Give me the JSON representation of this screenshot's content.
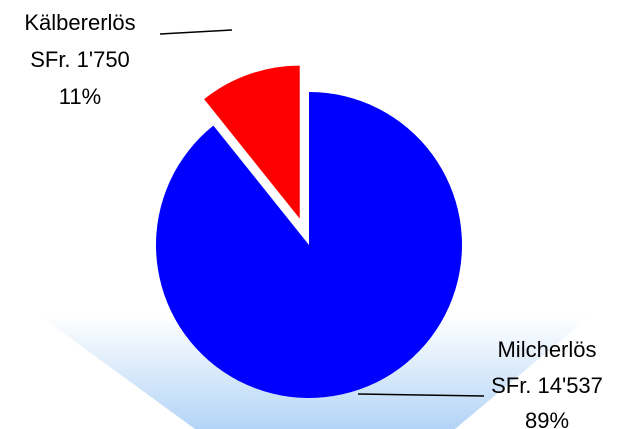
{
  "chart_data": {
    "type": "pie",
    "title": "",
    "slices": [
      {
        "name": "Milcherlös",
        "amount": "SFr. 14'537",
        "value": 14537,
        "percent": "89%",
        "color": "#0000ff",
        "exploded": false
      },
      {
        "name": "Kälbererlös",
        "amount": "SFr. 1'750",
        "value": 1750,
        "percent": "11%",
        "color": "#ff0000",
        "exploded": true
      }
    ],
    "legend": "none",
    "background_floor_color": "#b3d4f7"
  }
}
